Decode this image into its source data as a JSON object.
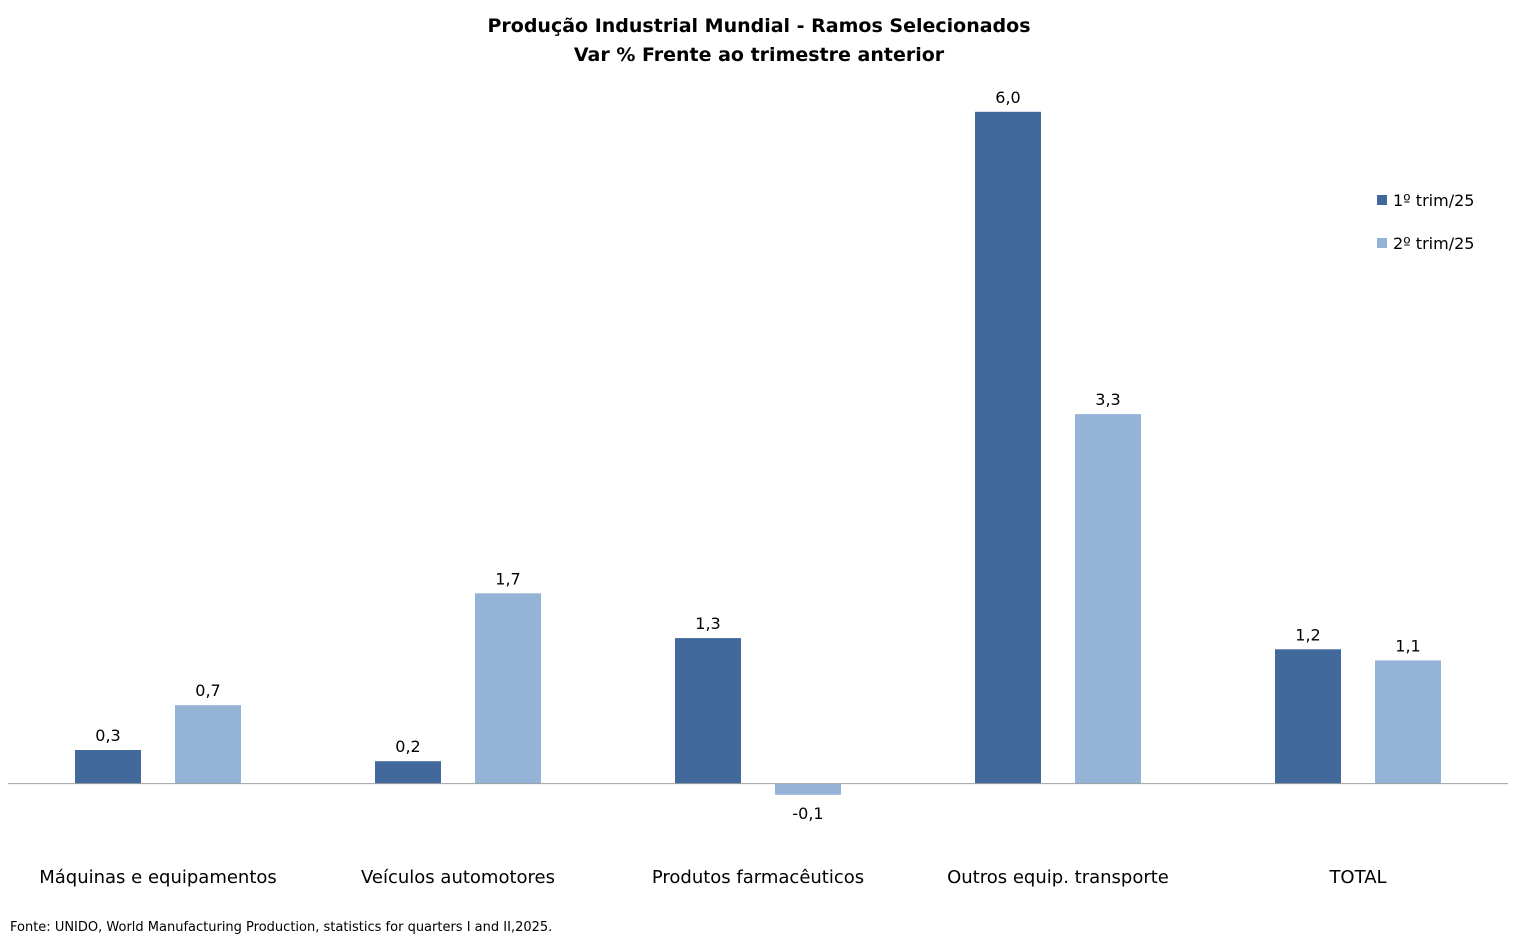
{
  "colors": {
    "series1": "#41699C",
    "series2": "#95B3D7",
    "axis": "#A0A0A0"
  },
  "source_note": "Fonte: UNIDO, World Manufacturing Production,  statistics for quarters I and II,2025.",
  "chart_data": {
    "type": "bar",
    "title": "Produção Industrial Mundial - Ramos Selecionados",
    "subtitle": "Var % Frente ao trimestre anterior",
    "xlabel": "",
    "ylabel": "",
    "ylim": [
      -0.45,
      6.15
    ],
    "grid": false,
    "legend_position": "right",
    "categories": [
      "Máquinas e equipamentos",
      "Veículos automotores",
      "Produtos farmacêuticos",
      "Outros equip. transporte",
      "TOTAL"
    ],
    "series": [
      {
        "name": "1º trim/25",
        "values": [
          0.3,
          0.2,
          1.3,
          6.0,
          1.2
        ],
        "labels": [
          "0,3",
          "0,2",
          "1,3",
          "6,0",
          "1,2"
        ]
      },
      {
        "name": "2º trim/25",
        "values": [
          0.7,
          1.7,
          -0.1,
          3.3,
          1.1
        ],
        "labels": [
          "0,7",
          "1,7",
          "-0,1",
          "3,3",
          "1,1"
        ]
      }
    ]
  }
}
